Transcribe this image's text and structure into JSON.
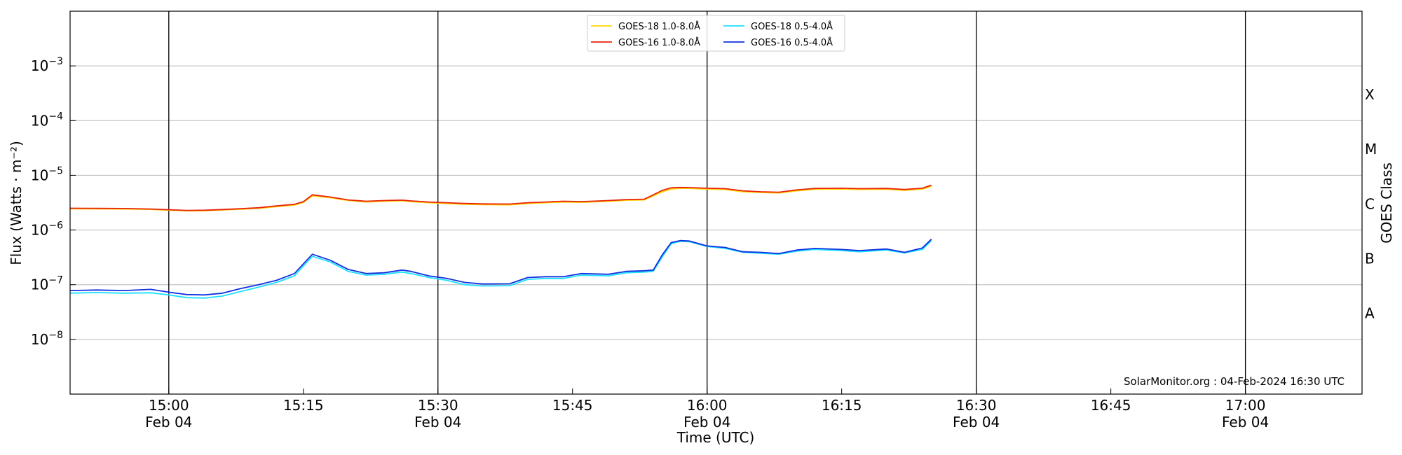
{
  "chart_data": {
    "type": "line",
    "xlabel": "Time (UTC)",
    "ylabel": "Flux (Watts · m⁻²)",
    "y2label": "GOES Class",
    "yscale": "log",
    "xlim": [
      "14:49",
      "17:13"
    ],
    "ylim": [
      1e-09,
      0.01
    ],
    "grid": "horizontal at decades",
    "x_ticks": [
      {
        "time": "15:00",
        "date": "Feb 04"
      },
      {
        "time": "15:15",
        "date": ""
      },
      {
        "time": "15:30",
        "date": "Feb 04"
      },
      {
        "time": "15:45",
        "date": ""
      },
      {
        "time": "16:00",
        "date": "Feb 04"
      },
      {
        "time": "16:15",
        "date": ""
      },
      {
        "time": "16:30",
        "date": "Feb 04"
      },
      {
        "time": "16:45",
        "date": ""
      },
      {
        "time": "17:00",
        "date": "Feb 04"
      }
    ],
    "vertical_lines": [
      "15:00",
      "15:30",
      "16:00",
      "16:30",
      "17:00"
    ],
    "y_ticks": [
      {
        "base": "10",
        "exp": "−8",
        "value": 1e-08
      },
      {
        "base": "10",
        "exp": "−7",
        "value": 1e-07
      },
      {
        "base": "10",
        "exp": "−6",
        "value": 1e-06
      },
      {
        "base": "10",
        "exp": "−5",
        "value": 1e-05
      },
      {
        "base": "10",
        "exp": "−4",
        "value": 0.0001
      },
      {
        "base": "10",
        "exp": "−3",
        "value": 0.001
      }
    ],
    "goes_classes": [
      {
        "label": "A",
        "value": 3e-08
      },
      {
        "label": "B",
        "value": 3e-07
      },
      {
        "label": "C",
        "value": 3e-06
      },
      {
        "label": "M",
        "value": 3e-05
      },
      {
        "label": "X",
        "value": 0.0003
      }
    ],
    "legend_position": "top-center",
    "credit": "SolarMonitor.org : 04-Feb-2024 16:30 UTC",
    "x": [
      "14:49",
      "14:52",
      "14:55",
      "14:58",
      "15:00",
      "15:02",
      "15:04",
      "15:06",
      "15:08",
      "15:10",
      "15:12",
      "15:14",
      "15:15",
      "15:16",
      "15:18",
      "15:20",
      "15:22",
      "15:24",
      "15:26",
      "15:27",
      "15:29",
      "15:31",
      "15:33",
      "15:35",
      "15:38",
      "15:40",
      "15:42",
      "15:44",
      "15:46",
      "15:49",
      "15:51",
      "15:53",
      "15:54",
      "15:55",
      "15:56",
      "15:57",
      "15:58",
      "16:00",
      "16:02",
      "16:04",
      "16:06",
      "16:08",
      "16:10",
      "16:12",
      "16:15",
      "16:17",
      "16:20",
      "16:22",
      "16:24",
      "16:25"
    ],
    "series": [
      {
        "name": "GOES-18 1.0-8.0Å",
        "color": "#ffd700",
        "values": [
          2.45e-06,
          2.43e-06,
          2.42e-06,
          2.38e-06,
          2.3e-06,
          2.24e-06,
          2.25e-06,
          2.32e-06,
          2.4e-06,
          2.48e-06,
          2.67e-06,
          2.85e-06,
          3.2e-06,
          4.2e-06,
          3.9e-06,
          3.45e-06,
          3.25e-06,
          3.35e-06,
          3.42e-06,
          3.3e-06,
          3.15e-06,
          3.05e-06,
          2.95e-06,
          2.9e-06,
          2.88e-06,
          3.05e-06,
          3.15e-06,
          3.25e-06,
          3.2e-06,
          3.35e-06,
          3.5e-06,
          3.55e-06,
          4.2e-06,
          5e-06,
          5.6e-06,
          5.8e-06,
          5.75e-06,
          5.6e-06,
          5.5e-06,
          5e-06,
          4.85e-06,
          4.75e-06,
          5.2e-06,
          5.55e-06,
          5.6e-06,
          5.5e-06,
          5.55e-06,
          5.3e-06,
          5.6e-06,
          6.3e-06
        ]
      },
      {
        "name": "GOES-16 1.0-8.0Å",
        "color": "#e8250c",
        "values": [
          2.5e-06,
          2.48e-06,
          2.47e-06,
          2.42e-06,
          2.35e-06,
          2.28e-06,
          2.3e-06,
          2.37e-06,
          2.45e-06,
          2.55e-06,
          2.75e-06,
          2.95e-06,
          3.3e-06,
          4.4e-06,
          4e-06,
          3.55e-06,
          3.35e-06,
          3.45e-06,
          3.52e-06,
          3.4e-06,
          3.25e-06,
          3.15e-06,
          3.05e-06,
          3e-06,
          2.98e-06,
          3.15e-06,
          3.25e-06,
          3.35e-06,
          3.3e-06,
          3.45e-06,
          3.6e-06,
          3.65e-06,
          4.4e-06,
          5.3e-06,
          5.9e-06,
          6e-06,
          5.95e-06,
          5.8e-06,
          5.7e-06,
          5.2e-06,
          5e-06,
          4.9e-06,
          5.4e-06,
          5.75e-06,
          5.8e-06,
          5.7e-06,
          5.75e-06,
          5.5e-06,
          5.8e-06,
          6.6e-06
        ]
      },
      {
        "name": "GOES-18 0.5-4.0Å",
        "color": "#1ee0ff",
        "values": [
          7e-08,
          7.2e-08,
          7e-08,
          7.1e-08,
          6.5e-08,
          5.8e-08,
          5.7e-08,
          6.2e-08,
          7.5e-08,
          9e-08,
          1.1e-07,
          1.45e-07,
          2.2e-07,
          3.3e-07,
          2.6e-07,
          1.75e-07,
          1.5e-07,
          1.55e-07,
          1.7e-07,
          1.6e-07,
          1.35e-07,
          1.2e-07,
          1e-07,
          9.5e-08,
          9.6e-08,
          1.25e-07,
          1.3e-07,
          1.3e-07,
          1.5e-07,
          1.45e-07,
          1.65e-07,
          1.7e-07,
          1.75e-07,
          3.2e-07,
          5.6e-07,
          6.2e-07,
          6.1e-07,
          5e-07,
          4.6e-07,
          3.9e-07,
          3.75e-07,
          3.6e-07,
          4.1e-07,
          4.4e-07,
          4.2e-07,
          4e-07,
          4.3e-07,
          3.8e-07,
          4.4e-07,
          6.4e-07
        ]
      },
      {
        "name": "GOES-16 0.5-4.0Å",
        "color": "#1030e0",
        "values": [
          7.8e-08,
          8e-08,
          7.8e-08,
          8.2e-08,
          7.3e-08,
          6.6e-08,
          6.5e-08,
          7e-08,
          8.5e-08,
          1e-07,
          1.2e-07,
          1.6e-07,
          2.4e-07,
          3.6e-07,
          2.8e-07,
          1.9e-07,
          1.6e-07,
          1.65e-07,
          1.85e-07,
          1.75e-07,
          1.45e-07,
          1.3e-07,
          1.1e-07,
          1.03e-07,
          1.04e-07,
          1.35e-07,
          1.4e-07,
          1.4e-07,
          1.6e-07,
          1.55e-07,
          1.75e-07,
          1.8e-07,
          1.85e-07,
          3.5e-07,
          5.9e-07,
          6.4e-07,
          6.3e-07,
          5.1e-07,
          4.8e-07,
          4e-07,
          3.9e-07,
          3.7e-07,
          4.3e-07,
          4.6e-07,
          4.4e-07,
          4.2e-07,
          4.5e-07,
          3.9e-07,
          4.7e-07,
          6.8e-07
        ]
      }
    ]
  }
}
